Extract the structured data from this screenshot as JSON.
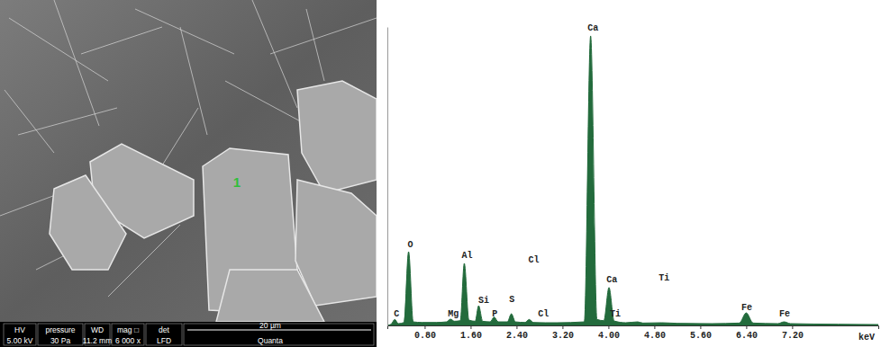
{
  "micrograph": {
    "point_label": "1",
    "info_bar": {
      "headers": [
        "HV",
        "pressure",
        "WD",
        "mag □",
        "det"
      ],
      "values": [
        "5.00 kV",
        "30 Pa",
        "11.2 mm",
        "6 000 x",
        "LFD"
      ],
      "scale_bar": "20 µm",
      "instrument": "Quanta"
    }
  },
  "chart_data": {
    "type": "area",
    "color": "#236b3c",
    "x_label": "keV",
    "x": [
      0.15,
      0.22,
      0.28,
      0.34,
      0.44,
      0.52,
      0.6,
      0.75,
      1.0,
      1.18,
      1.25,
      1.32,
      1.42,
      1.49,
      1.57,
      1.68,
      1.74,
      1.81,
      1.94,
      2.01,
      2.08,
      2.24,
      2.31,
      2.38,
      2.55,
      2.62,
      2.69,
      2.9,
      3.1,
      3.58,
      3.69,
      3.8,
      3.92,
      4.01,
      4.1,
      4.3,
      4.51,
      4.6,
      4.93,
      5.2,
      5.8,
      6.28,
      6.4,
      6.52,
      6.95,
      7.06,
      7.17,
      8.0,
      8.7
    ],
    "values": [
      0,
      5,
      20,
      6,
      10,
      247,
      12,
      10,
      10,
      12,
      21,
      14,
      16,
      208,
      18,
      14,
      66,
      14,
      12,
      28,
      12,
      12,
      39,
      12,
      10,
      20,
      10,
      9,
      9,
      12,
      970,
      20,
      16,
      127,
      15,
      9,
      12,
      8,
      9,
      7,
      6,
      8,
      42,
      8,
      6,
      12,
      6,
      4,
      3
    ],
    "xlim": [
      0.15,
      8.7
    ],
    "xticks": [
      {
        "value": 0.8,
        "label": "0.80"
      },
      {
        "value": 1.6,
        "label": "1.60"
      },
      {
        "value": 2.4,
        "label": "2.40"
      },
      {
        "value": 3.2,
        "label": "3.20"
      },
      {
        "value": 4.0,
        "label": "4.00"
      },
      {
        "value": 4.8,
        "label": "4.80"
      },
      {
        "value": 5.6,
        "label": "5.60"
      },
      {
        "value": 6.4,
        "label": "6.40"
      },
      {
        "value": 7.2,
        "label": "7.20"
      }
    ],
    "ylim": [
      0,
      1000
    ],
    "tick_labels": "x",
    "grid": false,
    "annotations": [
      {
        "text": "C",
        "x": 0.31,
        "y": 30
      },
      {
        "text": "O",
        "x": 0.55,
        "y": 262
      },
      {
        "text": "Mg",
        "x": 1.3,
        "y": 30
      },
      {
        "text": "Al",
        "x": 1.54,
        "y": 226
      },
      {
        "text": "Si",
        "x": 1.83,
        "y": 75
      },
      {
        "text": "P",
        "x": 2.02,
        "y": 30
      },
      {
        "text": "S",
        "x": 2.32,
        "y": 78
      },
      {
        "text": "Cl",
        "x": 2.7,
        "y": 211
      },
      {
        "text": "Cl",
        "x": 2.87,
        "y": 30
      },
      {
        "text": "Ca",
        "x": 3.73,
        "y": 988
      },
      {
        "text": "Ca",
        "x": 4.06,
        "y": 145
      },
      {
        "text": "Ti",
        "x": 4.12,
        "y": 30
      },
      {
        "text": "Ti",
        "x": 4.97,
        "y": 151
      },
      {
        "text": "Fe",
        "x": 6.41,
        "y": 51
      },
      {
        "text": "Fe",
        "x": 7.07,
        "y": 30
      }
    ]
  }
}
